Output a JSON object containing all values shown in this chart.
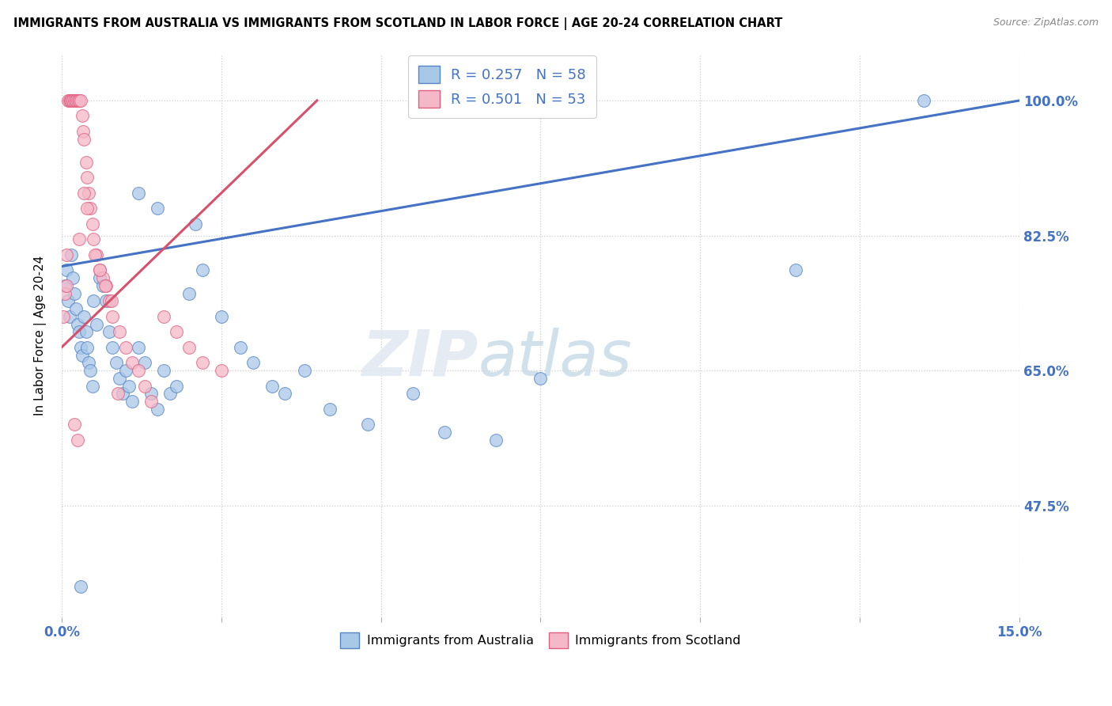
{
  "title": "IMMIGRANTS FROM AUSTRALIA VS IMMIGRANTS FROM SCOTLAND IN LABOR FORCE | AGE 20-24 CORRELATION CHART",
  "source": "Source: ZipAtlas.com",
  "ylabel": "In Labor Force | Age 20-24",
  "xlim": [
    0.0,
    15.0
  ],
  "ylim": [
    33.0,
    106.0
  ],
  "xtick_positions": [
    0.0,
    2.5,
    5.0,
    7.5,
    10.0,
    12.5,
    15.0
  ],
  "xticklabels": [
    "0.0%",
    "",
    "",
    "",
    "",
    "",
    "15.0%"
  ],
  "ytick_positions": [
    47.5,
    65.0,
    82.5,
    100.0
  ],
  "ytick_labels": [
    "47.5%",
    "65.0%",
    "82.5%",
    "100.0%"
  ],
  "australia_color": "#a8c8e8",
  "scotland_color": "#f5b8c8",
  "australia_edge_color": "#5585c5",
  "scotland_edge_color": "#e06080",
  "australia_line_color": "#4472c4",
  "scotland_line_color": "#d9506a",
  "R_australia": 0.257,
  "N_australia": 58,
  "R_scotland": 0.501,
  "N_scotland": 53,
  "legend_label_australia": "Immigrants from Australia",
  "legend_label_scotland": "Immigrants from Scotland",
  "australia_x": [
    0.05,
    0.08,
    0.1,
    0.12,
    0.15,
    0.18,
    0.2,
    0.22,
    0.25,
    0.28,
    0.3,
    0.32,
    0.35,
    0.38,
    0.4,
    0.42,
    0.45,
    0.48,
    0.5,
    0.55,
    0.6,
    0.65,
    0.7,
    0.75,
    0.8,
    0.85,
    0.9,
    0.95,
    1.0,
    1.05,
    1.1,
    1.2,
    1.3,
    1.4,
    1.5,
    1.6,
    1.7,
    1.8,
    2.0,
    2.2,
    2.5,
    2.8,
    3.0,
    3.3,
    3.5,
    4.2,
    4.8,
    5.5,
    6.0,
    6.8,
    1.2,
    1.5,
    2.1,
    3.8,
    7.5,
    11.5,
    13.5,
    0.3
  ],
  "australia_y": [
    76,
    78,
    74,
    72,
    80,
    77,
    75,
    73,
    71,
    70,
    68,
    67,
    72,
    70,
    68,
    66,
    65,
    63,
    74,
    71,
    77,
    76,
    74,
    70,
    68,
    66,
    64,
    62,
    65,
    63,
    61,
    68,
    66,
    62,
    60,
    65,
    62,
    63,
    75,
    78,
    72,
    68,
    66,
    63,
    62,
    60,
    58,
    62,
    57,
    56,
    88,
    86,
    84,
    65,
    64,
    78,
    100,
    37
  ],
  "scotland_x": [
    0.03,
    0.05,
    0.07,
    0.08,
    0.1,
    0.12,
    0.14,
    0.15,
    0.17,
    0.18,
    0.2,
    0.22,
    0.23,
    0.25,
    0.27,
    0.28,
    0.3,
    0.32,
    0.33,
    0.35,
    0.38,
    0.4,
    0.42,
    0.45,
    0.48,
    0.5,
    0.55,
    0.6,
    0.65,
    0.7,
    0.75,
    0.8,
    0.9,
    1.0,
    1.1,
    1.2,
    1.3,
    1.4,
    1.6,
    1.8,
    2.0,
    2.2,
    2.5,
    0.35,
    0.4,
    0.28,
    0.52,
    0.6,
    0.68,
    0.78,
    0.88,
    0.2,
    0.25
  ],
  "scotland_y": [
    72,
    75,
    76,
    80,
    100,
    100,
    100,
    100,
    100,
    100,
    100,
    100,
    100,
    100,
    100,
    100,
    100,
    98,
    96,
    95,
    92,
    90,
    88,
    86,
    84,
    82,
    80,
    78,
    77,
    76,
    74,
    72,
    70,
    68,
    66,
    65,
    63,
    61,
    72,
    70,
    68,
    66,
    65,
    88,
    86,
    82,
    80,
    78,
    76,
    74,
    62,
    58,
    56
  ],
  "aus_trend_x0": 0.0,
  "aus_trend_y0": 78.5,
  "aus_trend_x1": 15.0,
  "aus_trend_y1": 100.0,
  "sco_trend_x0": 0.0,
  "sco_trend_y0": 68.0,
  "sco_trend_x1": 4.0,
  "sco_trend_y1": 100.0
}
